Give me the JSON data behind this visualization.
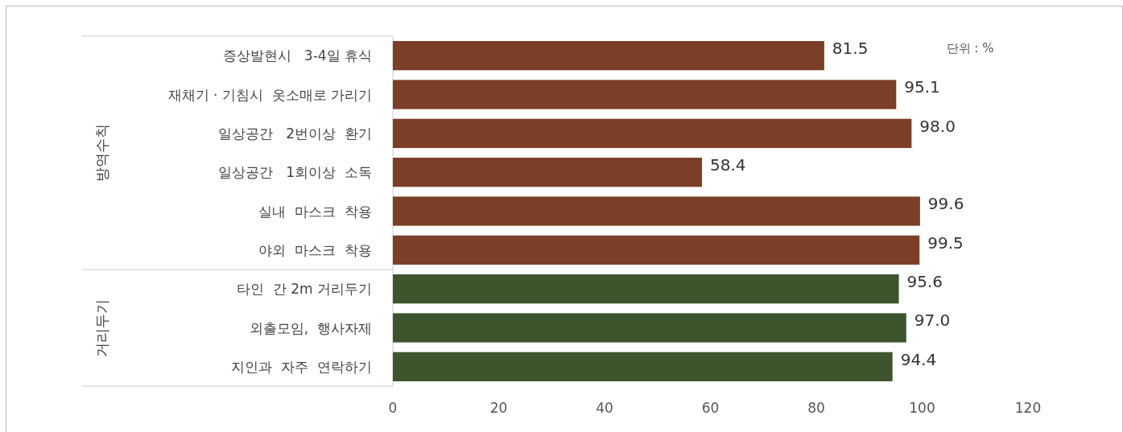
{
  "chart_data": {
    "type": "bar",
    "orientation": "horizontal",
    "categories": [
      "증상발현시   3-4일 휴식",
      "재채기 · 기침시  옷소매로 가리기",
      "일상공간   2번이상  환기",
      "일상공간   1회이상  소독",
      "실내  마스크  착용",
      "야외  마스크  착용",
      "타인  간 2m 거리두기",
      "외출모임,  행사자제",
      "지인과  자주  연락하기"
    ],
    "values": [
      81.5,
      95.1,
      98.0,
      58.4,
      99.6,
      99.5,
      95.6,
      97.0,
      94.4
    ],
    "colors": [
      "#7b3e26",
      "#7b3e26",
      "#7b3e26",
      "#7b3e26",
      "#7b3e26",
      "#7b3e26",
      "#3d552d",
      "#3d552d",
      "#3d552d"
    ],
    "value_labels": [
      "81.5",
      "95.1",
      "98.0",
      "58.4",
      "99.6",
      "99.5",
      "95.6",
      "97.0",
      "94.4"
    ],
    "xlim": [
      0,
      120
    ],
    "xticks": [
      0,
      20,
      40,
      60,
      80,
      100,
      120
    ],
    "annotations": [
      "단위 : %",
      "방역수칙",
      "거리두기"
    ]
  }
}
